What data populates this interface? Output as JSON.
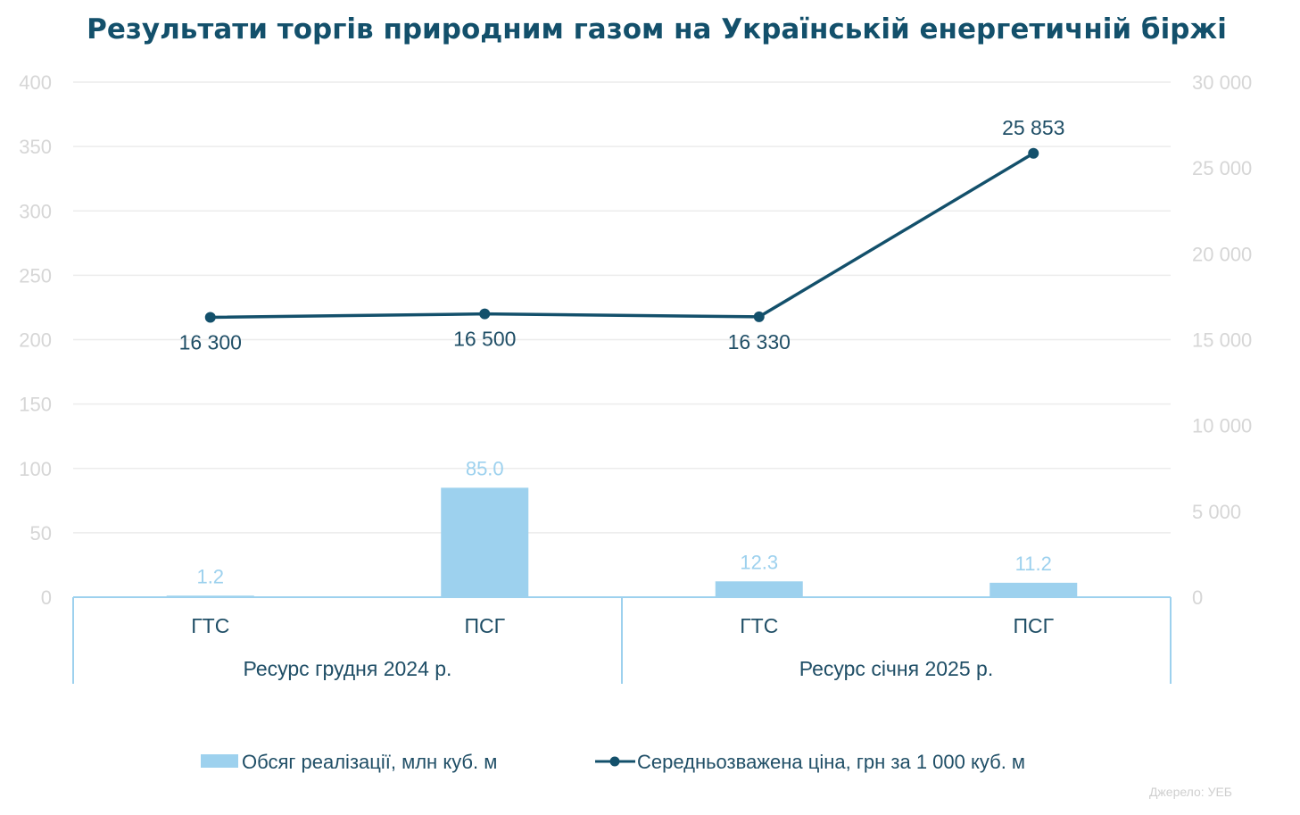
{
  "chart_data": {
    "type": "bar+line",
    "title": "Результати торгів природним газом на Українській енергетичній біржі",
    "categories": [
      "ГТС",
      "ПСГ",
      "ГТС",
      "ПСГ"
    ],
    "groups": [
      {
        "label": "Ресурс грудня 2024 р.",
        "categories": [
          0,
          1
        ]
      },
      {
        "label": "Ресурс січня 2025 р.",
        "categories": [
          2,
          3
        ]
      }
    ],
    "series": [
      {
        "name": "Обсяг реалізації, млн куб. м",
        "type": "bar",
        "axis": "left",
        "values": [
          1.2,
          85.0,
          12.3,
          11.2
        ],
        "labels": [
          "1.2",
          "85.0",
          "12.3",
          "11.2"
        ],
        "color": "#9dd1ee"
      },
      {
        "name": "Середньозважена ціна, грн за 1 000 куб. м",
        "type": "line",
        "axis": "right",
        "values": [
          16300,
          16500,
          16330,
          25853
        ],
        "labels": [
          "16 300",
          "16 500",
          "16 330",
          "25 853"
        ],
        "color": "#13506b"
      }
    ],
    "left_axis": {
      "range": [
        0,
        400
      ],
      "ticks": [
        "0",
        "50",
        "100",
        "150",
        "200",
        "250",
        "300",
        "350",
        "400"
      ]
    },
    "right_axis": {
      "range": [
        0,
        30000
      ],
      "ticks": [
        "0",
        "5 000",
        "10 000",
        "15 000",
        "20 000",
        "25 000",
        "30 000"
      ]
    },
    "grid": true,
    "legend": "bottom",
    "source": "Джерело: УЕБ"
  }
}
